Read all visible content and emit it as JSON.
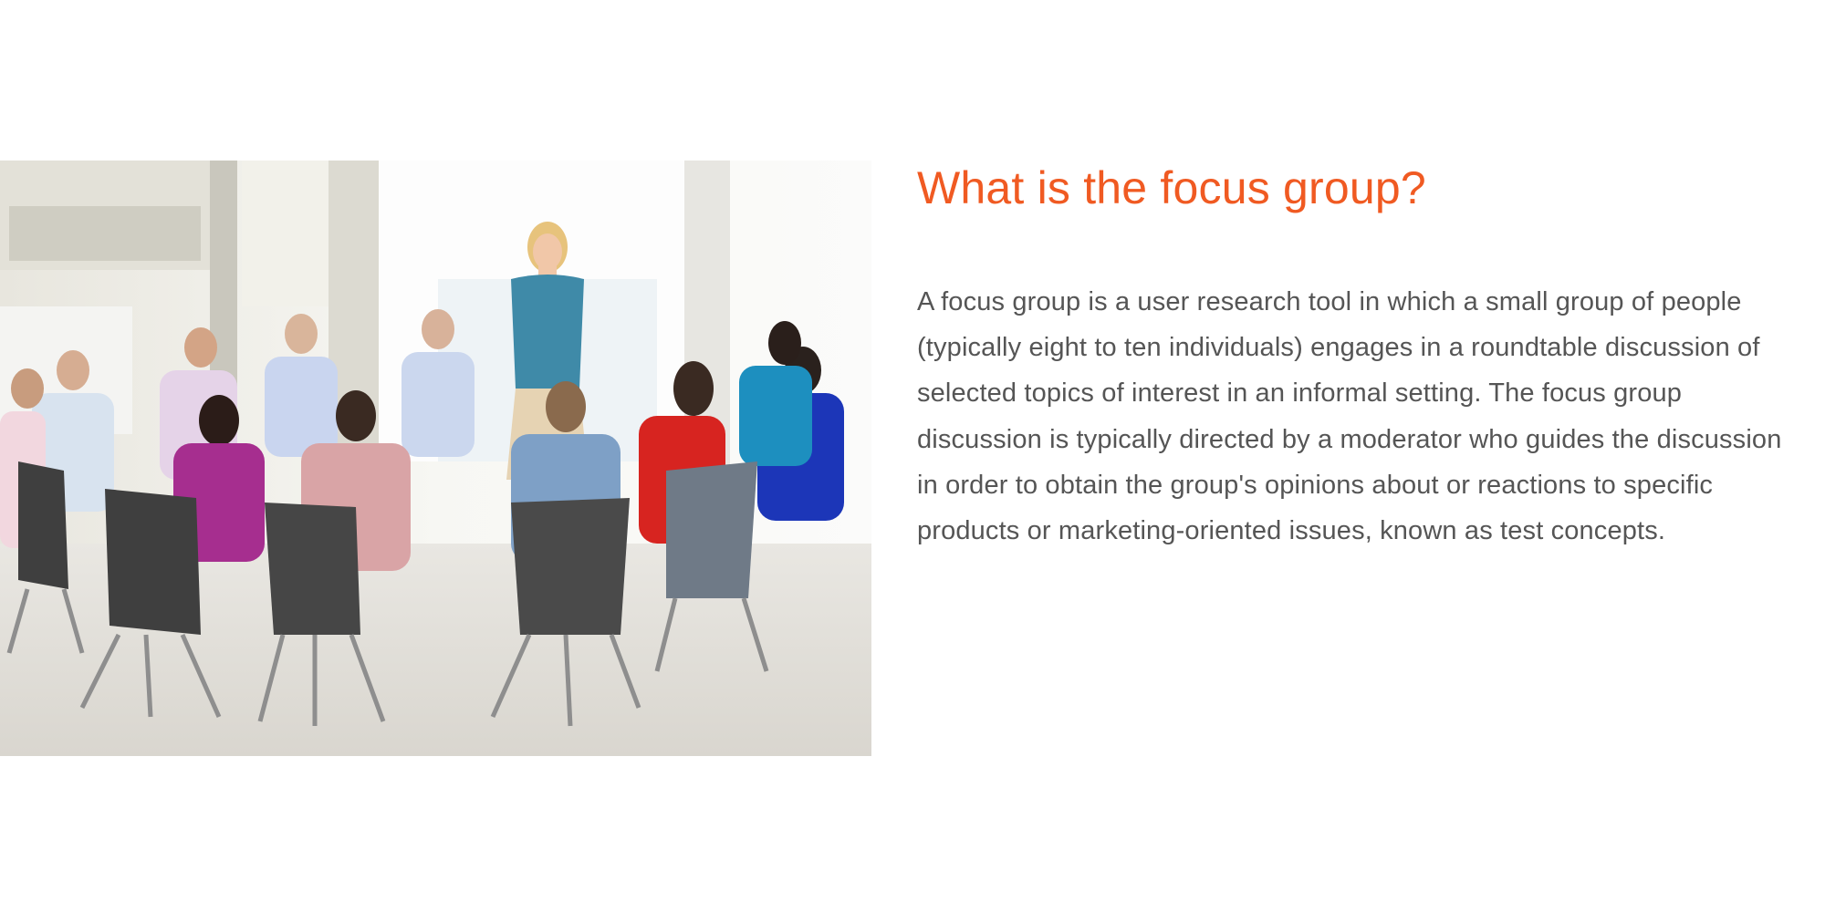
{
  "colors": {
    "accent": "#f05a22",
    "text": "#555555",
    "background": "#ffffff"
  },
  "image": {
    "icon": "photo-focus-group-meeting"
  },
  "section": {
    "title": "What is the focus group?",
    "paragraph": "A focus group is a user research tool in which a small group of people (typically eight to ten individuals) engages in a roundtable discussion of selected topics of interest in an informal setting. The focus group discussion is typically directed by a moderator who guides the discussion in order to obtain the group's opinions about or reactions to specific products or marketing-oriented issues, known as test concepts."
  }
}
